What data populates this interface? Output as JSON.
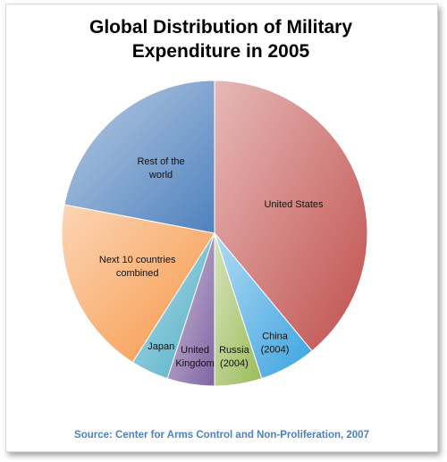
{
  "chart_data": {
    "type": "pie",
    "title": "Global Distribution of Military Expenditure in 2005",
    "source": "Source: Center for Arms Control and Non-Proliferation, 2007",
    "categories": [
      "United States",
      "China (2004)",
      "Russia (2004)",
      "United Kingdom",
      "Japan",
      "Next 10 countries combined",
      "Rest of the world"
    ],
    "values": [
      39,
      6,
      5,
      5,
      4,
      19,
      22
    ],
    "colors": [
      "#c0504d",
      "#3ba3e0",
      "#9bbb59",
      "#8064a2",
      "#4bacc6",
      "#f79646",
      "#4f81bd"
    ]
  }
}
